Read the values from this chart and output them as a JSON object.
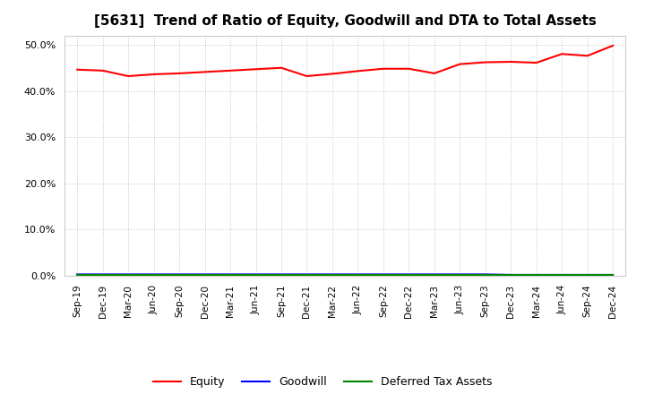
{
  "title": "[5631]  Trend of Ratio of Equity, Goodwill and DTA to Total Assets",
  "x_labels": [
    "Sep-19",
    "Dec-19",
    "Mar-20",
    "Jun-20",
    "Sep-20",
    "Dec-20",
    "Mar-21",
    "Jun-21",
    "Sep-21",
    "Dec-21",
    "Mar-22",
    "Jun-22",
    "Sep-22",
    "Dec-22",
    "Mar-23",
    "Jun-23",
    "Sep-23",
    "Dec-23",
    "Mar-24",
    "Jun-24",
    "Sep-24",
    "Dec-24"
  ],
  "equity": [
    0.446,
    0.444,
    0.432,
    0.436,
    0.438,
    0.441,
    0.444,
    0.447,
    0.45,
    0.432,
    0.437,
    0.443,
    0.448,
    0.448,
    0.438,
    0.458,
    0.462,
    0.463,
    0.461,
    0.48,
    0.476,
    0.498
  ],
  "goodwill": [
    0.003,
    0.003,
    0.003,
    0.003,
    0.003,
    0.003,
    0.003,
    0.003,
    0.003,
    0.003,
    0.003,
    0.003,
    0.003,
    0.003,
    0.003,
    0.003,
    0.003,
    0.002,
    0.002,
    0.002,
    0.002,
    0.002
  ],
  "dta": [
    0.002,
    0.002,
    0.002,
    0.002,
    0.002,
    0.002,
    0.002,
    0.002,
    0.002,
    0.002,
    0.002,
    0.002,
    0.002,
    0.002,
    0.002,
    0.002,
    0.002,
    0.002,
    0.002,
    0.002,
    0.002,
    0.002
  ],
  "equity_color": "#FF0000",
  "goodwill_color": "#0000FF",
  "dta_color": "#008000",
  "ylim": [
    0.0,
    0.52
  ],
  "yticks": [
    0.0,
    0.1,
    0.2,
    0.3,
    0.4,
    0.5
  ],
  "background_color": "#FFFFFF",
  "plot_bg_color": "#FFFFFF",
  "grid_color": "#BBBBBB",
  "title_fontsize": 11,
  "legend_labels": [
    "Equity",
    "Goodwill",
    "Deferred Tax Assets"
  ]
}
